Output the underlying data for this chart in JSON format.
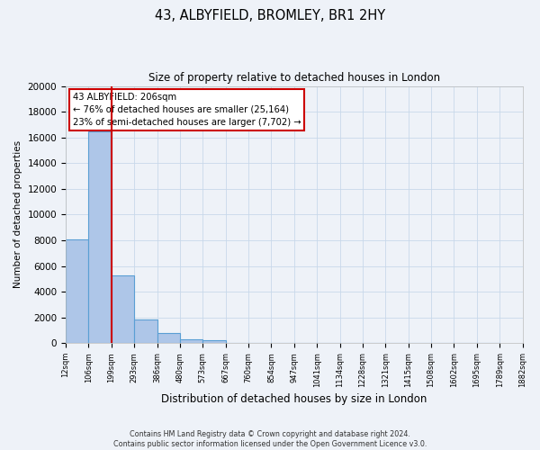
{
  "title": "43, ALBYFIELD, BROMLEY, BR1 2HY",
  "subtitle": "Size of property relative to detached houses in London",
  "xlabel": "Distribution of detached houses by size in London",
  "ylabel": "Number of detached properties",
  "bar_values": [
    8100,
    16500,
    5300,
    1800,
    750,
    300,
    200,
    0,
    0,
    0,
    0,
    0,
    0,
    0,
    0,
    0,
    0,
    0,
    0
  ],
  "bin_labels": [
    "12sqm",
    "106sqm",
    "199sqm",
    "293sqm",
    "386sqm",
    "480sqm",
    "573sqm",
    "667sqm",
    "760sqm",
    "854sqm",
    "947sqm",
    "1041sqm",
    "1134sqm",
    "1228sqm",
    "1321sqm",
    "1415sqm",
    "1508sqm",
    "1602sqm",
    "1695sqm",
    "1789sqm",
    "1882sqm"
  ],
  "bar_color": "#aec6e8",
  "bar_edge_color": "#5a9fd4",
  "vline_color": "#cc0000",
  "annotation_text_line1": "43 ALBYFIELD: 206sqm",
  "annotation_text_line2": "← 76% of detached houses are smaller (25,164)",
  "annotation_text_line3": "23% of semi-detached houses are larger (7,702) →",
  "box_edge_color": "#cc0000",
  "ylim": [
    0,
    20000
  ],
  "yticks": [
    0,
    2000,
    4000,
    6000,
    8000,
    10000,
    12000,
    14000,
    16000,
    18000,
    20000
  ],
  "footer_line1": "Contains HM Land Registry data © Crown copyright and database right 2024.",
  "footer_line2": "Contains public sector information licensed under the Open Government Licence v3.0.",
  "background_color": "#eef2f8",
  "grid_color": "#c8d8ea"
}
